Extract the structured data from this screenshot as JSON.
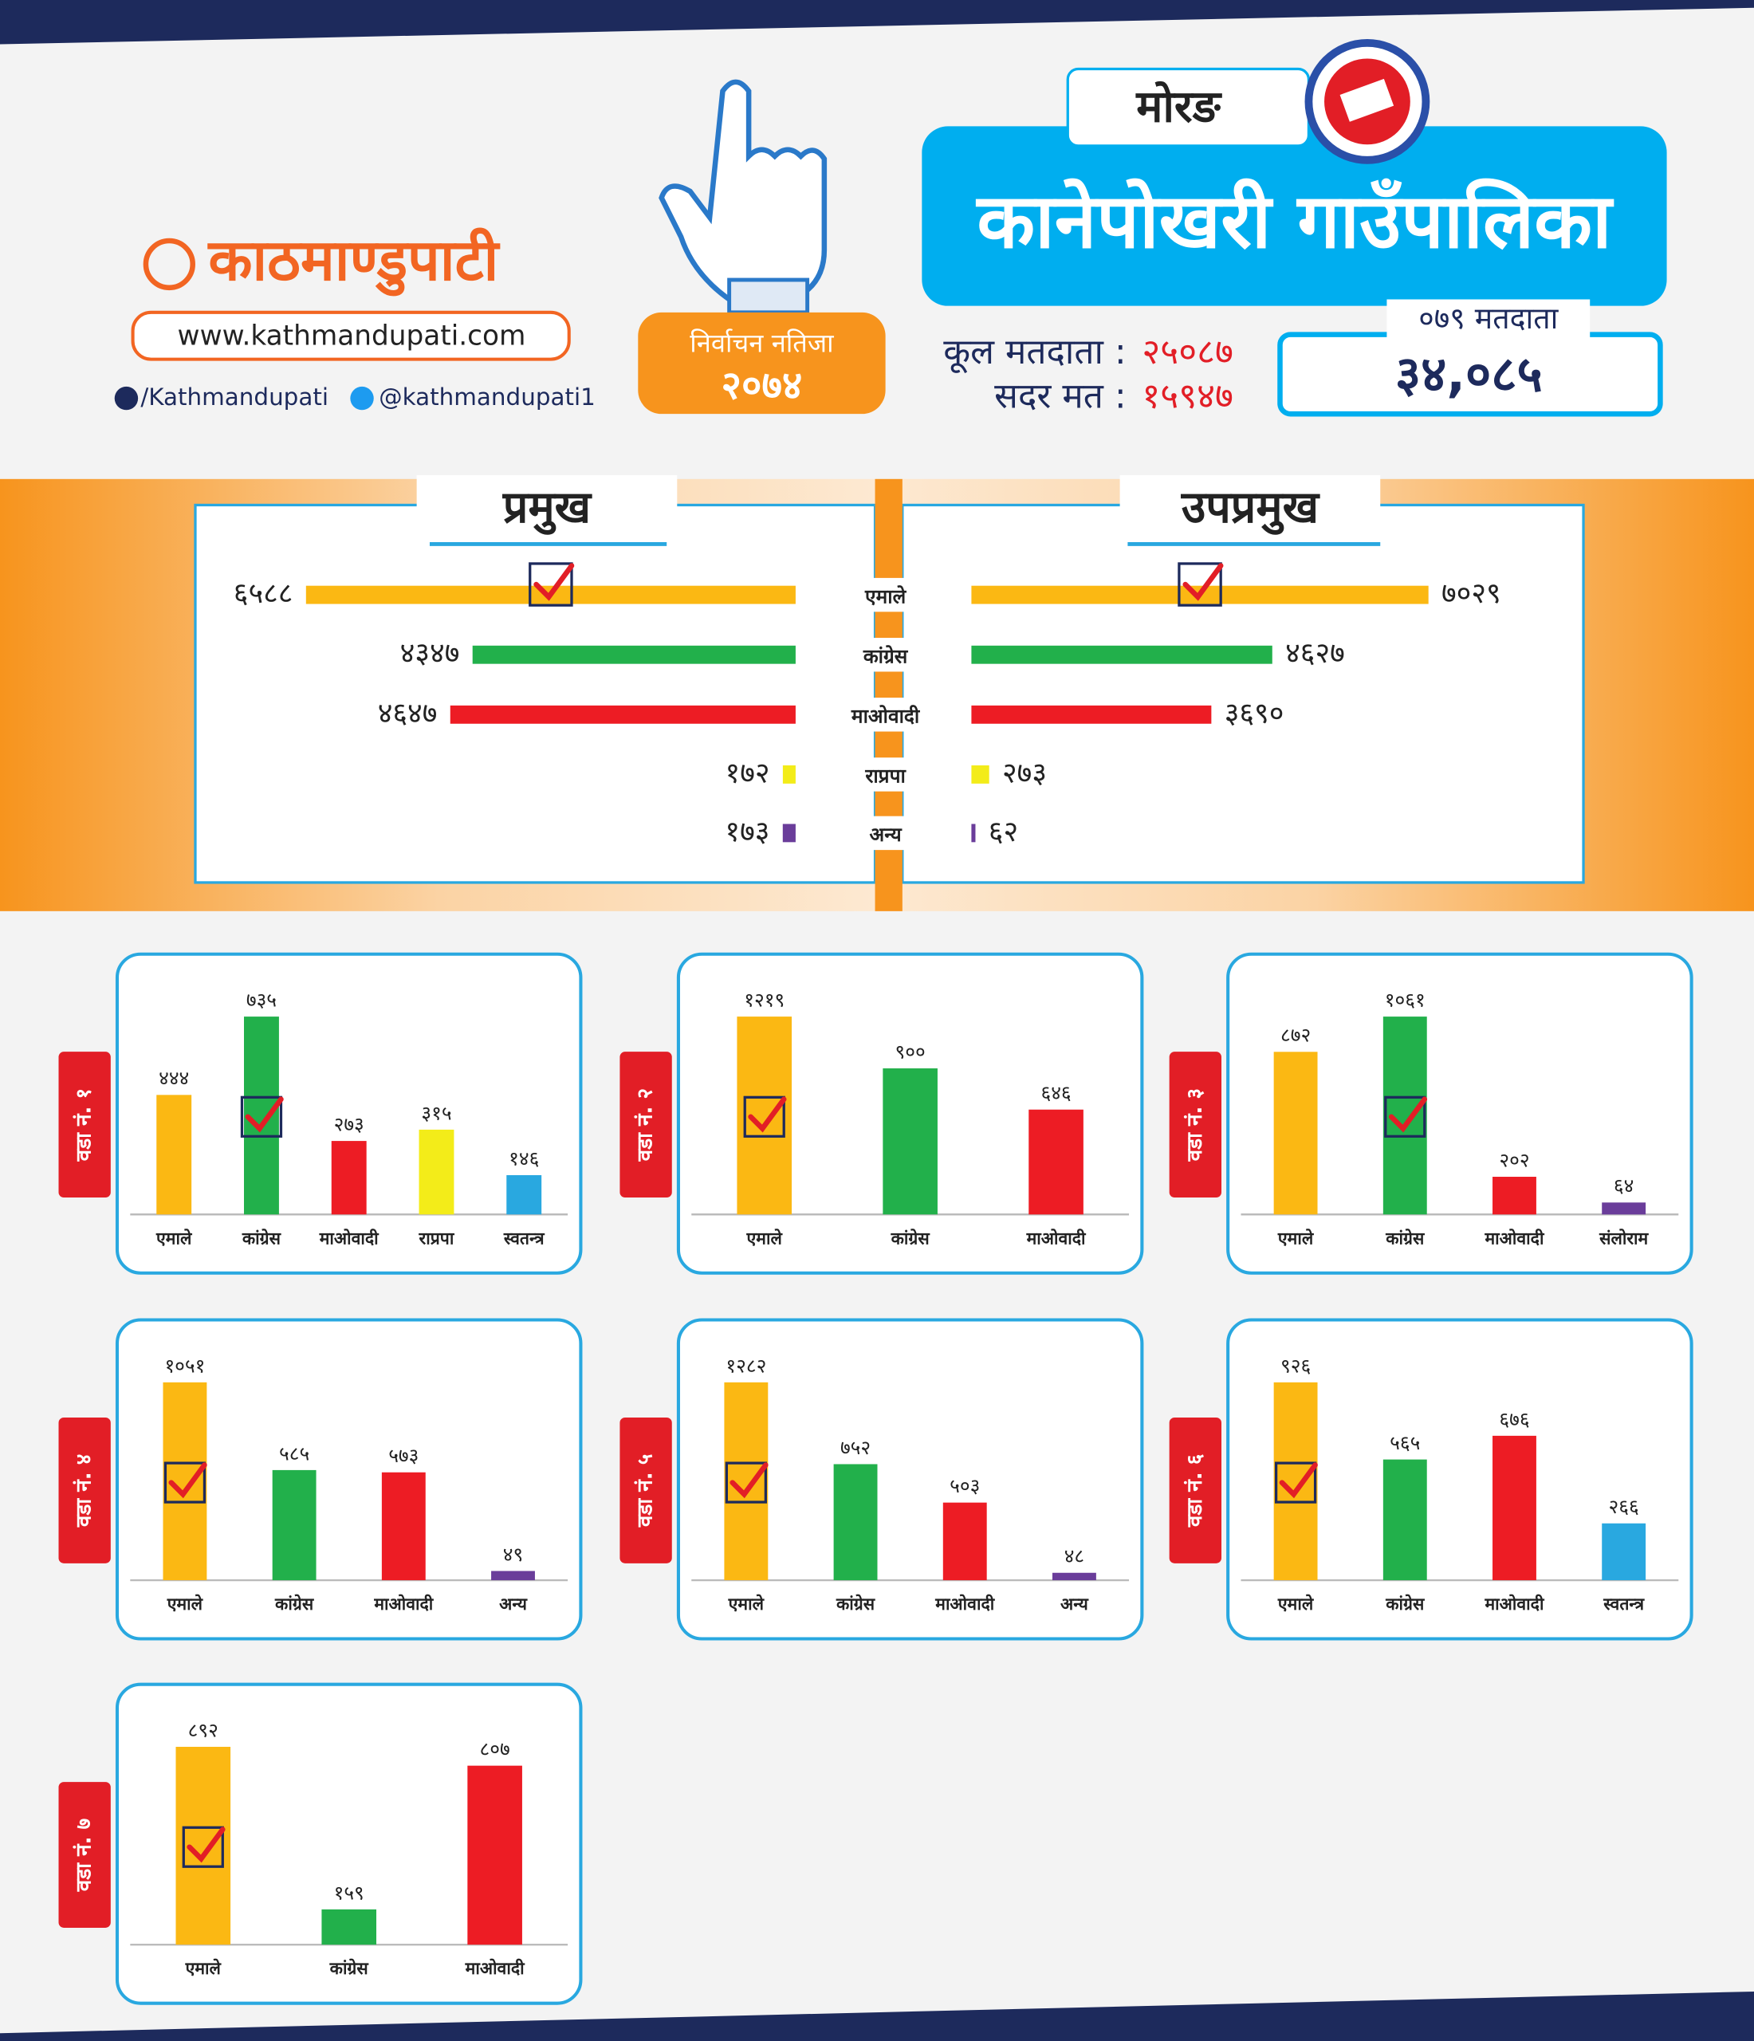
{
  "brand": {
    "name": "काठमाण्डुपाटी",
    "website": "www.kathmandupati.com",
    "facebook": "/Kathmandupati",
    "twitter": "@kathmandupati1"
  },
  "badge": {
    "title": "निर्वाचन नतिजा",
    "year": "२०७४"
  },
  "header": {
    "district": "मोरङ",
    "municipality": "कानेपोखरी गाउँपालिका",
    "voters_079_label": "०७९ मतदाता",
    "voters_079": "३४,०८५",
    "total_voters_label": "कूल मतदाता :",
    "total_voters": "२५०८७",
    "valid_votes_label": "सदर मत :",
    "valid_votes": "१५९४७"
  },
  "chart_data": [
    {
      "type": "butterfly",
      "categories": [
        "एमाले",
        "कांग्रेस",
        "माओवादी",
        "राप्रपा",
        "अन्य"
      ],
      "colors": [
        "#fbb813",
        "#22b04b",
        "#ed1c24",
        "#f3ec19",
        "#6a3d9a"
      ],
      "series": [
        {
          "name": "प्रमुख",
          "values": [
            6588,
            4347,
            4647,
            172,
            173
          ],
          "value_labels": [
            "६५८८",
            "४३४७",
            "४६४७",
            "१७२",
            "१७३"
          ]
        },
        {
          "name": "उपप्रमुख",
          "values": [
            7029,
            4627,
            3690,
            273,
            62
          ],
          "value_labels": [
            "७०२९",
            "४६२७",
            "३६९०",
            "२७३",
            "६२"
          ]
        }
      ]
    },
    {
      "type": "bar",
      "title": "वडा नं. १",
      "categories": [
        "एमाले",
        "कांग्रेस",
        "माओवादी",
        "राप्रपा",
        "स्वतन्त्र"
      ],
      "values": [
        444,
        735,
        273,
        315,
        146
      ],
      "value_labels": [
        "४४४",
        "७३५",
        "२७३",
        "३१५",
        "१४६"
      ],
      "colors": [
        "#fbb813",
        "#22b04b",
        "#ed1c24",
        "#f3ec19",
        "#29a8e0"
      ]
    },
    {
      "type": "bar",
      "title": "वडा नं. २",
      "categories": [
        "एमाले",
        "कांग्रेस",
        "माओवादी"
      ],
      "values": [
        1219,
        900,
        646
      ],
      "value_labels": [
        "१२१९",
        "९००",
        "६४६"
      ],
      "colors": [
        "#fbb813",
        "#22b04b",
        "#ed1c24"
      ]
    },
    {
      "type": "bar",
      "title": "वडा नं. ३",
      "categories": [
        "एमाले",
        "कांग्रेस",
        "माओवादी",
        "संलोराम"
      ],
      "values": [
        872,
        1061,
        202,
        64
      ],
      "value_labels": [
        "८७२",
        "१०६१",
        "२०२",
        "६४"
      ],
      "colors": [
        "#fbb813",
        "#22b04b",
        "#ed1c24",
        "#6a3d9a"
      ]
    },
    {
      "type": "bar",
      "title": "वडा नं. ४",
      "categories": [
        "एमाले",
        "कांग्रेस",
        "माओवादी",
        "अन्य"
      ],
      "values": [
        1051,
        585,
        573,
        49
      ],
      "value_labels": [
        "१०५१",
        "५८५",
        "५७३",
        "४९"
      ],
      "colors": [
        "#fbb813",
        "#22b04b",
        "#ed1c24",
        "#6a3d9a"
      ]
    },
    {
      "type": "bar",
      "title": "वडा नं. ५",
      "categories": [
        "एमाले",
        "कांग्रेस",
        "माओवादी",
        "अन्य"
      ],
      "values": [
        1282,
        752,
        503,
        48
      ],
      "value_labels": [
        "१२८२",
        "७५२",
        "५०३",
        "४८"
      ],
      "colors": [
        "#fbb813",
        "#22b04b",
        "#ed1c24",
        "#6a3d9a"
      ]
    },
    {
      "type": "bar",
      "title": "वडा नं. ६",
      "categories": [
        "एमाले",
        "कांग्रेस",
        "माओवादी",
        "स्वतन्त्र"
      ],
      "values": [
        926,
        565,
        676,
        266
      ],
      "value_labels": [
        "९२६",
        "५६५",
        "६७६",
        "२६६"
      ],
      "colors": [
        "#fbb813",
        "#22b04b",
        "#ed1c24",
        "#29a8e0"
      ]
    },
    {
      "type": "bar",
      "title": "वडा नं. ७",
      "categories": [
        "एमाले",
        "कांग्रेस",
        "माओवादी"
      ],
      "values": [
        892,
        159,
        807
      ],
      "value_labels": [
        "८९२",
        "१५९",
        "८०७"
      ],
      "colors": [
        "#fbb813",
        "#22b04b",
        "#ed1c24"
      ]
    }
  ]
}
